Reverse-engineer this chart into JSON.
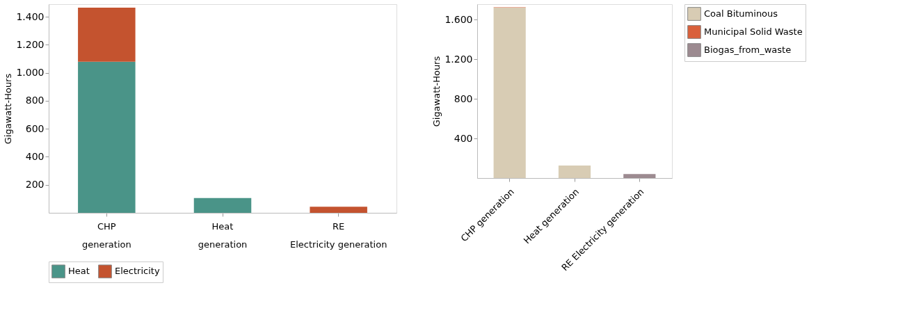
{
  "chart_data": [
    {
      "type": "bar",
      "stacked": true,
      "ylabel": "Gigawatt-Hours",
      "categories": [
        "CHP generation",
        "Heat generation",
        "RE Electricity generation"
      ],
      "series": [
        {
          "name": "Heat",
          "color": "#4a9488",
          "values": [
            1079,
            105,
            null
          ]
        },
        {
          "name": "Electricity",
          "color": "#c4532f",
          "values": [
            386,
            null,
            44
          ]
        }
      ],
      "ylim": [
        0,
        1490
      ],
      "yticks": [
        {
          "value": 200,
          "label": "200"
        },
        {
          "value": 400,
          "label": "400"
        },
        {
          "value": 600,
          "label": "600"
        },
        {
          "value": 800,
          "label": "800"
        },
        {
          "value": 1000,
          "label": "1.000"
        },
        {
          "value": 1200,
          "label": "1.200"
        },
        {
          "value": 1400,
          "label": "1.400"
        }
      ],
      "grid": false,
      "legend": "bottom"
    },
    {
      "type": "bar",
      "stacked": true,
      "ylabel": "Gigawatt-Hours",
      "categories": [
        "CHP generation",
        "Heat generation",
        "RE Electricity generation"
      ],
      "series": [
        {
          "name": "Coal Bituminous",
          "color": "#d8ccb4",
          "values": [
            1722,
            126,
            null
          ]
        },
        {
          "name": "Municipal Solid Waste",
          "color": "#d9603b",
          "values": [
            4,
            null,
            null
          ]
        },
        {
          "name": "Biogas_from_waste",
          "color": "#9c8a90",
          "values": [
            null,
            null,
            40
          ]
        }
      ],
      "ylim": [
        0,
        1757
      ],
      "yticks": [
        {
          "value": 400,
          "label": "400"
        },
        {
          "value": 800,
          "label": "800"
        },
        {
          "value": 1200,
          "label": "1.200"
        },
        {
          "value": 1600,
          "label": "1.600"
        }
      ],
      "grid": false,
      "legend": "top right"
    }
  ]
}
